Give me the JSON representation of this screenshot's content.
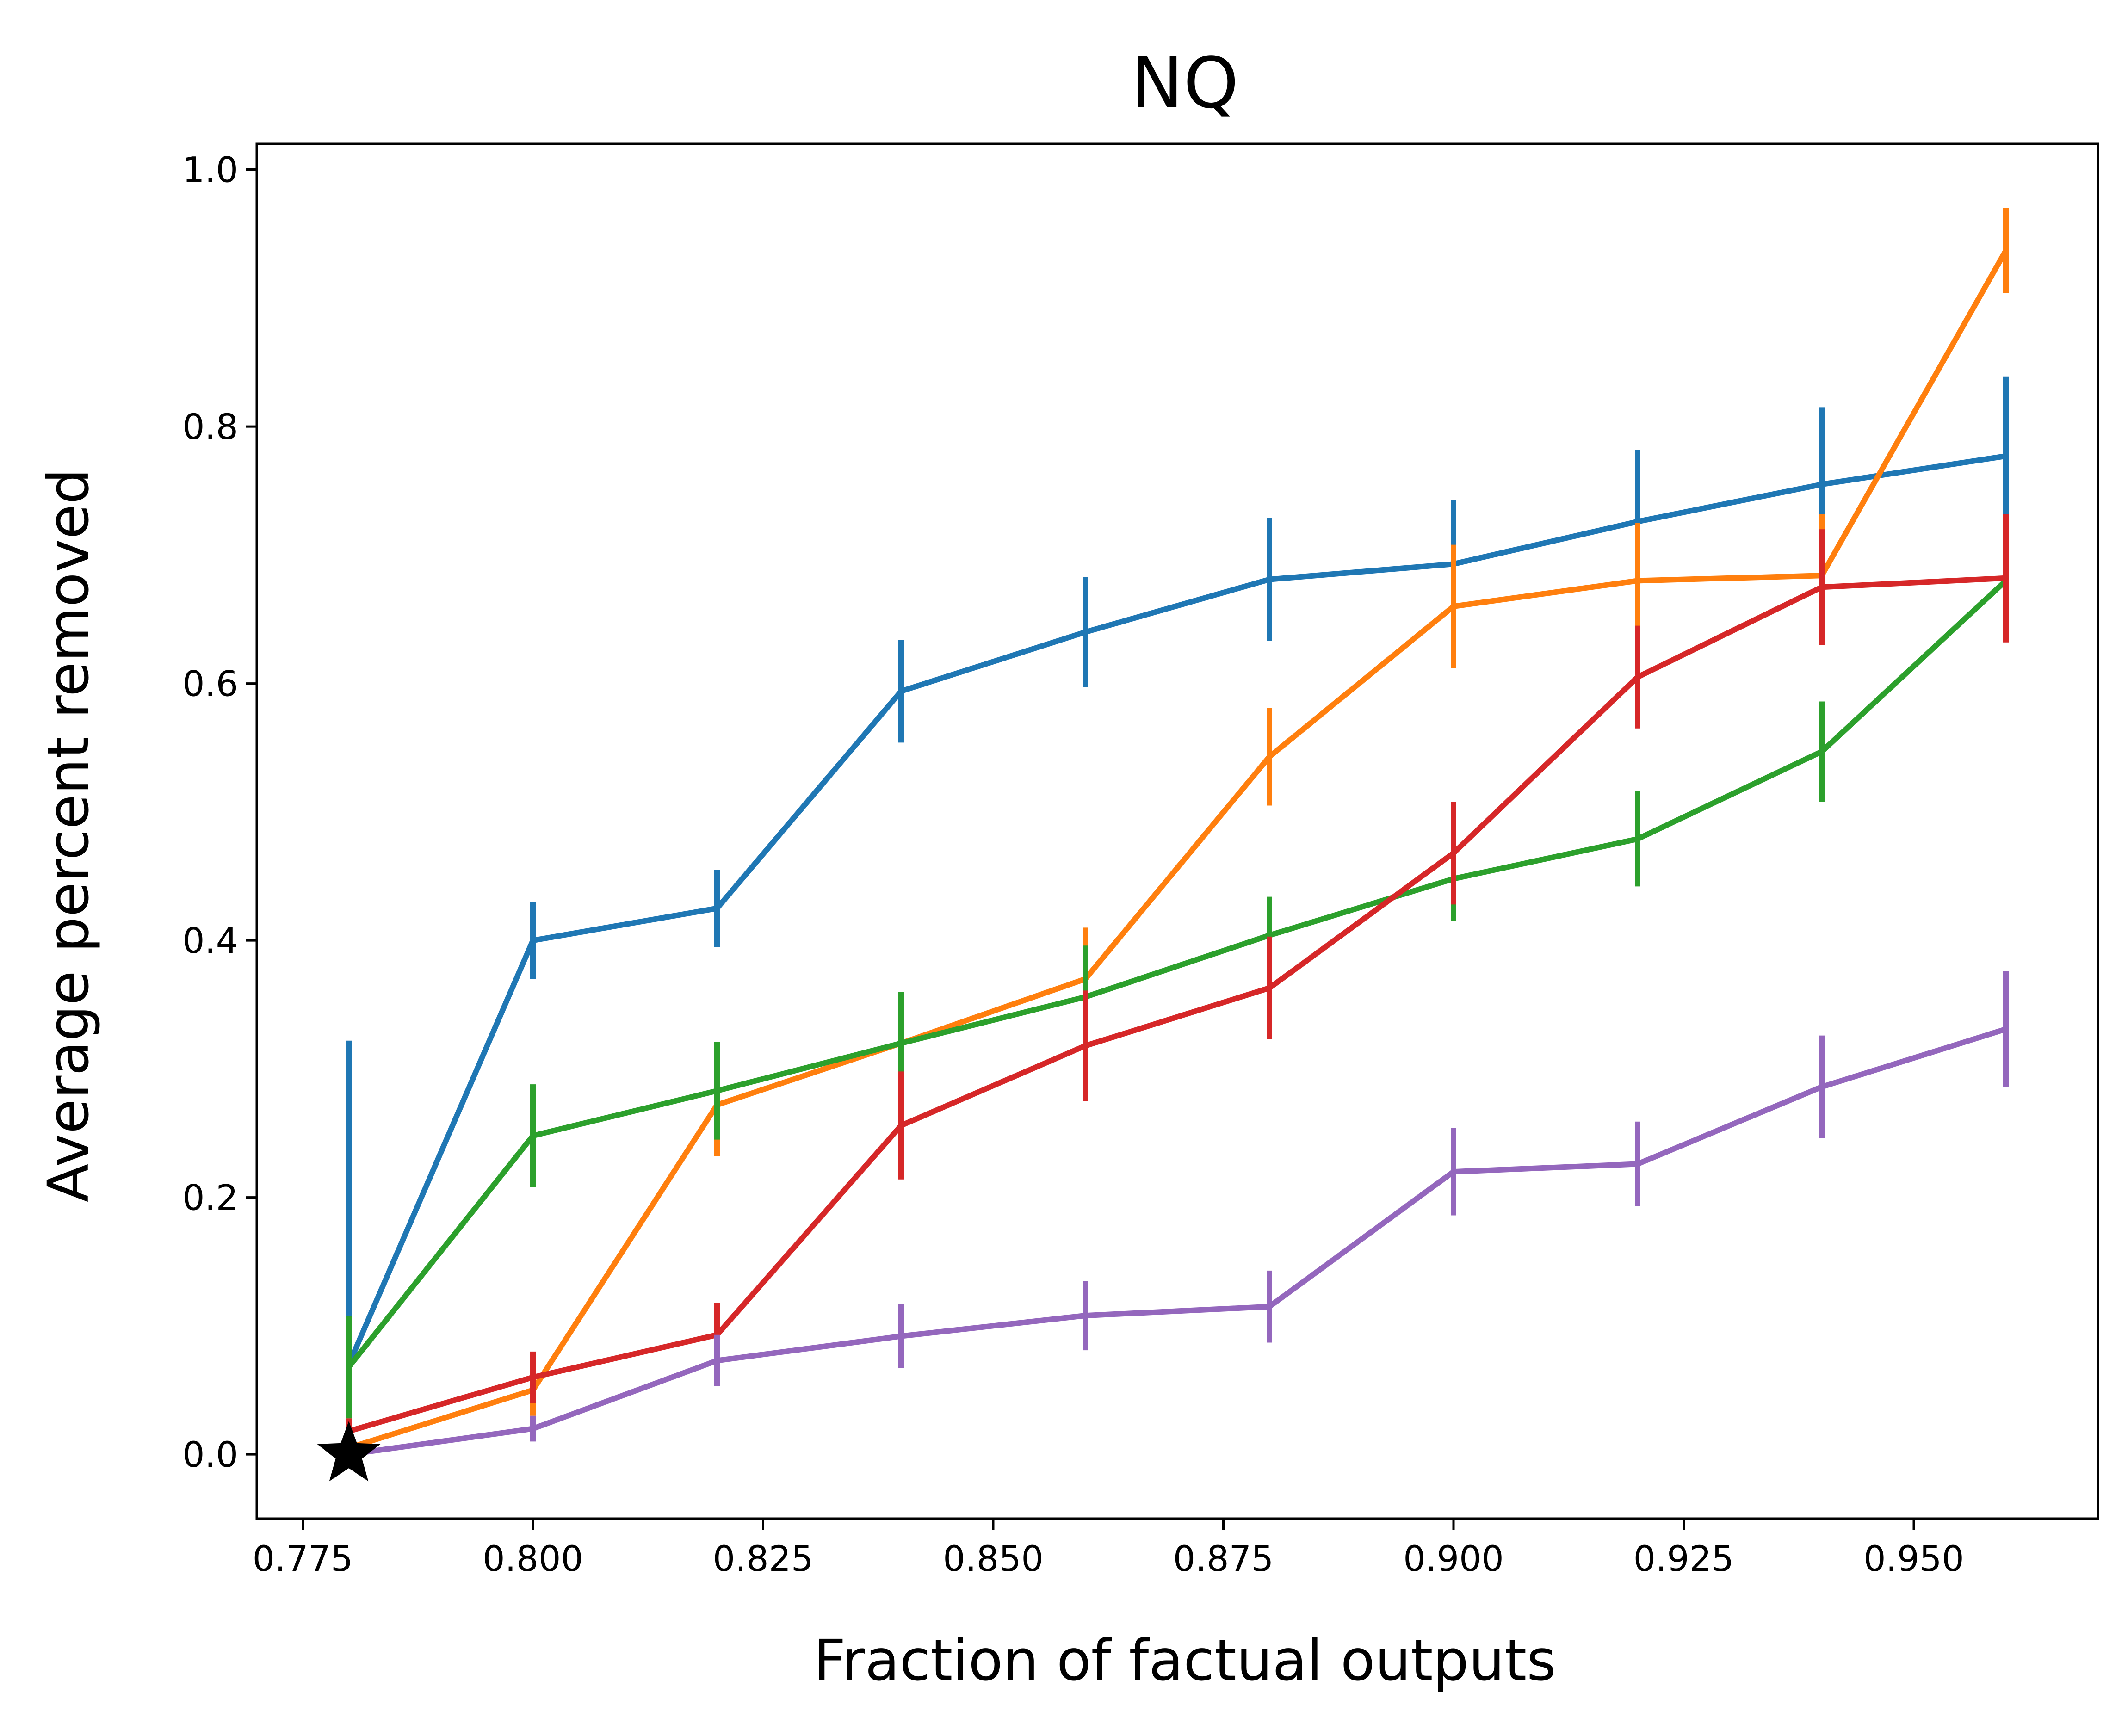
{
  "chart_data": {
    "type": "line",
    "title": "NQ",
    "xlabel": "Fraction of factual outputs",
    "ylabel": "Average percent removed",
    "xlim": [
      0.77,
      0.97
    ],
    "ylim": [
      -0.05,
      1.02
    ],
    "xticks": [
      0.775,
      0.8,
      0.825,
      0.85,
      0.875,
      0.9,
      0.925,
      0.95
    ],
    "xtick_labels": [
      "0.775",
      "0.800",
      "0.825",
      "0.850",
      "0.875",
      "0.900",
      "0.925",
      "0.950"
    ],
    "yticks": [
      0.0,
      0.2,
      0.4,
      0.6,
      0.8,
      1.0
    ],
    "ytick_labels": [
      "0.0",
      "0.2",
      "0.4",
      "0.6",
      "0.8",
      "1.0"
    ],
    "x": [
      0.78,
      0.8,
      0.82,
      0.84,
      0.86,
      0.88,
      0.9,
      0.92,
      0.94,
      0.96
    ],
    "series": [
      {
        "name": "blue",
        "color": "#1f77b4",
        "points": [
          {
            "x": 0.78,
            "y": 0.272,
            "err": 0.05
          },
          {
            "x": 0.78,
            "y": 0.07,
            "err": 0.03
          },
          {
            "x": 0.8,
            "y": 0.4,
            "err": 0.03
          },
          {
            "x": 0.82,
            "y": 0.425,
            "err": 0.03
          },
          {
            "x": 0.84,
            "y": 0.594,
            "err": 0.04
          },
          {
            "x": 0.86,
            "y": 0.64,
            "err": 0.043
          },
          {
            "x": 0.88,
            "y": 0.681,
            "err": 0.048
          },
          {
            "x": 0.9,
            "y": 0.693,
            "err": 0.05
          },
          {
            "x": 0.92,
            "y": 0.726,
            "err": 0.056
          },
          {
            "x": 0.94,
            "y": 0.755,
            "err": 0.06
          },
          {
            "x": 0.96,
            "y": 0.777,
            "err": 0.062
          }
        ]
      },
      {
        "name": "orange",
        "color": "#ff7f0e",
        "points": [
          {
            "x": 0.78,
            "y": 0.005,
            "err": 0.01
          },
          {
            "x": 0.8,
            "y": 0.05,
            "err": 0.02
          },
          {
            "x": 0.82,
            "y": 0.272,
            "err": 0.04
          },
          {
            "x": 0.84,
            "y": 0.32,
            "err": 0.04
          },
          {
            "x": 0.86,
            "y": 0.37,
            "err": 0.04
          },
          {
            "x": 0.88,
            "y": 0.543,
            "err": 0.038
          },
          {
            "x": 0.9,
            "y": 0.66,
            "err": 0.048
          },
          {
            "x": 0.92,
            "y": 0.68,
            "err": 0.045
          },
          {
            "x": 0.94,
            "y": 0.684,
            "err": 0.048
          },
          {
            "x": 0.96,
            "y": 0.937,
            "err": 0.033
          }
        ]
      },
      {
        "name": "green",
        "color": "#2ca02c",
        "points": [
          {
            "x": 0.78,
            "y": 0.068,
            "err": 0.04
          },
          {
            "x": 0.8,
            "y": 0.248,
            "err": 0.04
          },
          {
            "x": 0.82,
            "y": 0.283,
            "err": 0.038
          },
          {
            "x": 0.84,
            "y": 0.32,
            "err": 0.04
          },
          {
            "x": 0.86,
            "y": 0.356,
            "err": 0.04
          },
          {
            "x": 0.88,
            "y": 0.404,
            "err": 0.03
          },
          {
            "x": 0.9,
            "y": 0.448,
            "err": 0.033
          },
          {
            "x": 0.92,
            "y": 0.479,
            "err": 0.037
          },
          {
            "x": 0.94,
            "y": 0.547,
            "err": 0.039
          },
          {
            "x": 0.96,
            "y": 0.68,
            "err": 0.045
          }
        ]
      },
      {
        "name": "red",
        "color": "#d62728",
        "points": [
          {
            "x": 0.78,
            "y": 0.018,
            "err": 0.01
          },
          {
            "x": 0.8,
            "y": 0.06,
            "err": 0.02
          },
          {
            "x": 0.82,
            "y": 0.093,
            "err": 0.025
          },
          {
            "x": 0.84,
            "y": 0.256,
            "err": 0.042
          },
          {
            "x": 0.86,
            "y": 0.318,
            "err": 0.043
          },
          {
            "x": 0.88,
            "y": 0.363,
            "err": 0.04
          },
          {
            "x": 0.9,
            "y": 0.468,
            "err": 0.04
          },
          {
            "x": 0.92,
            "y": 0.605,
            "err": 0.04
          },
          {
            "x": 0.94,
            "y": 0.675,
            "err": 0.045
          },
          {
            "x": 0.96,
            "y": 0.682,
            "err": 0.05
          }
        ]
      },
      {
        "name": "purple",
        "color": "#9467bd",
        "points": [
          {
            "x": 0.78,
            "y": 0.0,
            "err": 0.005
          },
          {
            "x": 0.8,
            "y": 0.02,
            "err": 0.01
          },
          {
            "x": 0.82,
            "y": 0.073,
            "err": 0.02
          },
          {
            "x": 0.84,
            "y": 0.092,
            "err": 0.025
          },
          {
            "x": 0.86,
            "y": 0.108,
            "err": 0.027
          },
          {
            "x": 0.88,
            "y": 0.115,
            "err": 0.028
          },
          {
            "x": 0.9,
            "y": 0.22,
            "err": 0.034
          },
          {
            "x": 0.92,
            "y": 0.226,
            "err": 0.033
          },
          {
            "x": 0.94,
            "y": 0.286,
            "err": 0.04
          },
          {
            "x": 0.96,
            "y": 0.331,
            "err": 0.045
          }
        ]
      }
    ],
    "annotations": [
      {
        "type": "star-marker",
        "x": 0.78,
        "y": 0.0,
        "color": "#000000"
      }
    ]
  }
}
